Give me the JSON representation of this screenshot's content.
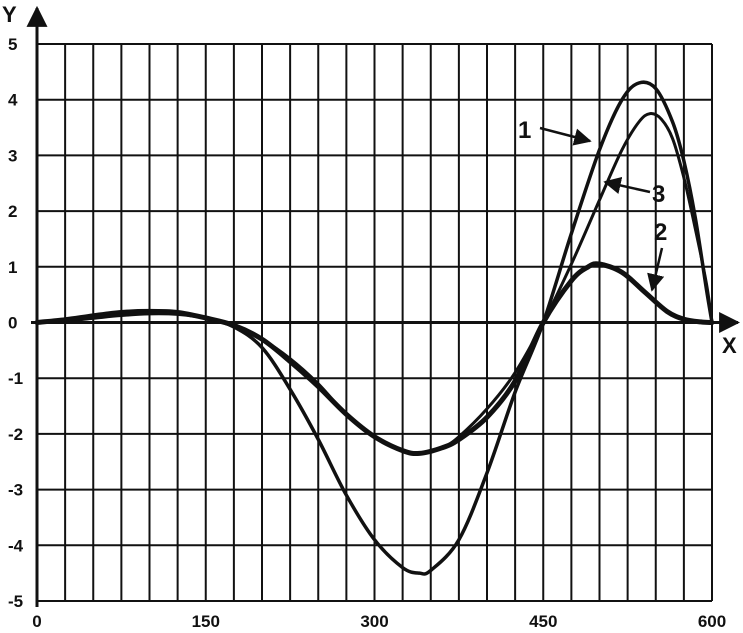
{
  "chart_data": {
    "type": "line",
    "xlabel": "X",
    "ylabel": "Y",
    "xlim": [
      0,
      600
    ],
    "ylim": [
      -5,
      5
    ],
    "grid": true,
    "x_ticks": [
      0,
      150,
      300,
      450,
      600
    ],
    "y_ticks": [
      -5,
      -4,
      -3,
      -2,
      -1,
      0,
      1,
      2,
      3,
      4,
      5
    ],
    "series": [
      {
        "name": "1",
        "x": [
          0,
          25,
          50,
          75,
          100,
          125,
          150,
          175,
          200,
          225,
          250,
          275,
          300,
          325,
          340,
          350,
          375,
          400,
          425,
          450,
          475,
          500,
          520,
          535,
          550,
          565,
          575,
          585,
          595,
          600
        ],
        "y": [
          0,
          0.03,
          0.08,
          0.13,
          0.16,
          0.15,
          0.08,
          -0.08,
          -0.45,
          -1.2,
          -2.1,
          -3.1,
          -3.9,
          -4.4,
          -4.5,
          -4.45,
          -3.9,
          -2.7,
          -1.25,
          0,
          1.6,
          3.1,
          4.0,
          4.3,
          4.2,
          3.6,
          2.9,
          1.9,
          0.6,
          0
        ]
      },
      {
        "name": "2",
        "x": [
          0,
          25,
          50,
          75,
          100,
          125,
          150,
          175,
          200,
          225,
          250,
          275,
          300,
          325,
          340,
          360,
          375,
          400,
          425,
          450,
          475,
          490,
          500,
          520,
          540,
          560,
          575,
          590,
          600
        ],
        "y": [
          0,
          0.05,
          0.12,
          0.18,
          0.2,
          0.18,
          0.08,
          -0.05,
          -0.3,
          -0.7,
          -1.15,
          -1.65,
          -2.05,
          -2.3,
          -2.35,
          -2.25,
          -2.1,
          -1.7,
          -1.05,
          0,
          0.75,
          1.0,
          1.05,
          0.9,
          0.55,
          0.2,
          0.06,
          0.01,
          0
        ]
      },
      {
        "name": "3",
        "x": [
          0,
          25,
          50,
          75,
          100,
          125,
          150,
          175,
          200,
          225,
          250,
          275,
          300,
          325,
          340,
          360,
          375,
          400,
          425,
          450,
          475,
          500,
          520,
          535,
          545,
          555,
          565,
          575,
          585,
          595,
          600
        ],
        "y": [
          0,
          0.05,
          0.1,
          0.14,
          0.17,
          0.16,
          0.08,
          -0.05,
          -0.3,
          -0.65,
          -1.1,
          -1.65,
          -2.05,
          -2.3,
          -2.35,
          -2.25,
          -2.05,
          -1.55,
          -0.9,
          0,
          1.05,
          2.2,
          3.1,
          3.6,
          3.75,
          3.65,
          3.3,
          2.6,
          1.7,
          0.7,
          0
        ]
      }
    ],
    "annotations": [
      {
        "text": "1",
        "series": "1"
      },
      {
        "text": "3",
        "series": "3"
      },
      {
        "text": "2",
        "series": "2"
      }
    ]
  }
}
